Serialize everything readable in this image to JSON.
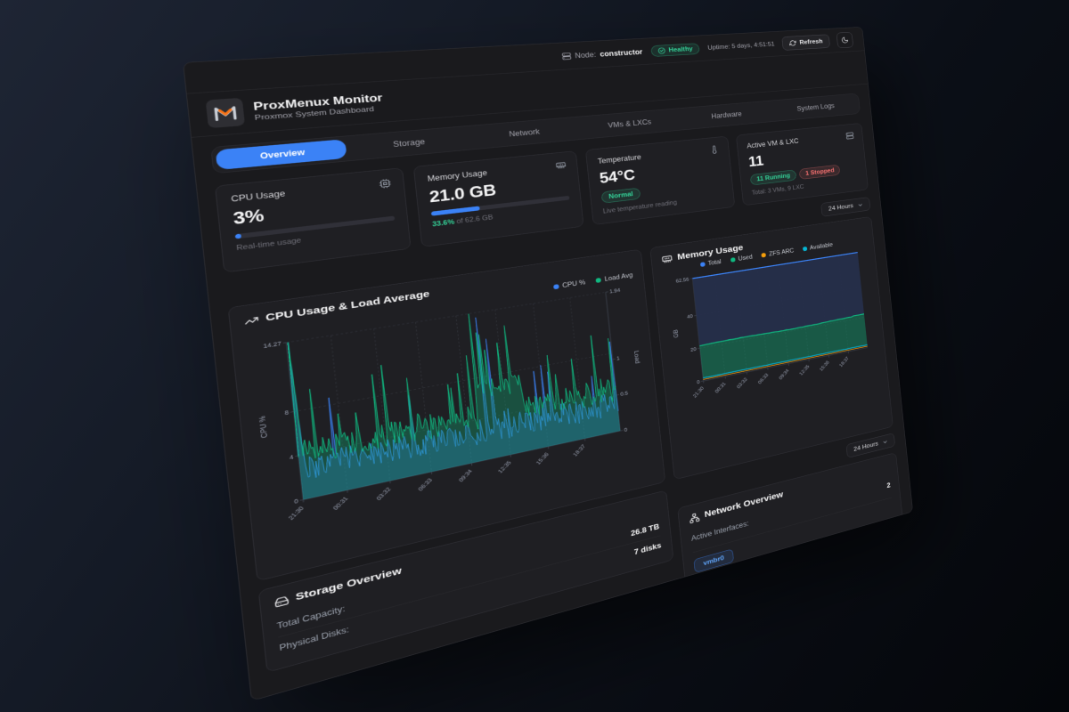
{
  "topbar": {
    "node_label": "Node:",
    "node_value": "constructor",
    "health_label": "Healthy",
    "uptime": "Uptime: 5 days, 4:51:51",
    "refresh_label": "Refresh"
  },
  "brand": {
    "title": "ProxMenux Monitor",
    "subtitle": "Proxmox System Dashboard"
  },
  "tabs": [
    {
      "label": "Overview",
      "active": true
    },
    {
      "label": "Storage",
      "active": false
    },
    {
      "label": "Network",
      "active": false
    },
    {
      "label": "VMs & LXCs",
      "active": false
    },
    {
      "label": "Hardware",
      "active": false
    },
    {
      "label": "System Logs",
      "active": false
    }
  ],
  "stats": {
    "cpu": {
      "title": "CPU Usage",
      "value": "3%",
      "percent": 3,
      "caption": "Real-time usage"
    },
    "memory": {
      "title": "Memory Usage",
      "value": "21.0 GB",
      "percent": 33.6,
      "caption_highlight": "33.6%",
      "caption_rest": " of 62.6 GB"
    },
    "temperature": {
      "title": "Temperature",
      "value": "54°C",
      "badge": "Normal",
      "caption": "Live temperature reading"
    },
    "vms": {
      "title": "Active VM & LXC",
      "value": "11",
      "running_badge": "11 Running",
      "stopped_badge": "1 Stopped",
      "caption": "Total: 3 VMs, 9 LXC"
    }
  },
  "range": {
    "primary_label": "24 Hours",
    "secondary_label": "24 Hours"
  },
  "charts": {
    "x_ticks": [
      "21:30",
      "00:31",
      "03:32",
      "06:33",
      "09:34",
      "12:35",
      "15:36",
      "18:37"
    ],
    "cpu": {
      "title": "CPU Usage & Load Average",
      "legend": [
        {
          "label": "CPU %",
          "color": "#3b82f6"
        },
        {
          "label": "Load Avg",
          "color": "#10b981"
        }
      ],
      "y_left_label": "CPU %",
      "y_left_ticks": [
        14.27,
        8,
        4,
        0
      ],
      "y_left_max": 14.27,
      "y_right_label": "Load",
      "y_right_ticks": [
        1.94,
        1,
        0.5,
        0
      ],
      "y_right_max": 1.94
    },
    "memory": {
      "title": "Memory Usage",
      "legend": [
        {
          "label": "Total",
          "color": "#3b82f6"
        },
        {
          "label": "Used",
          "color": "#10b981"
        },
        {
          "label": "ZFS ARC",
          "color": "#f59e0b"
        },
        {
          "label": "Available",
          "color": "#06b6d4"
        }
      ],
      "y_label": "GB",
      "y_ticks": [
        62.56,
        40,
        20,
        0
      ],
      "y_max": 62.56,
      "levels": {
        "total": 62.56,
        "used": 21.5,
        "zfs_arc": 0.9,
        "available": 1.8
      }
    }
  },
  "storage": {
    "title": "Storage Overview",
    "rows": [
      {
        "label": "Total Capacity:",
        "value": "26.8 TB"
      },
      {
        "label": "Physical Disks:",
        "value": "7 disks"
      }
    ]
  },
  "network": {
    "title": "Network Overview",
    "rows": [
      {
        "label": "Active Interfaces:",
        "value": "2"
      }
    ],
    "interfaces": [
      "vmbr0"
    ]
  },
  "colors": {
    "accent": "#3b82f6",
    "green": "#10b981",
    "red": "#ef4444",
    "orange": "#f59e0b",
    "cyan": "#06b6d4"
  }
}
